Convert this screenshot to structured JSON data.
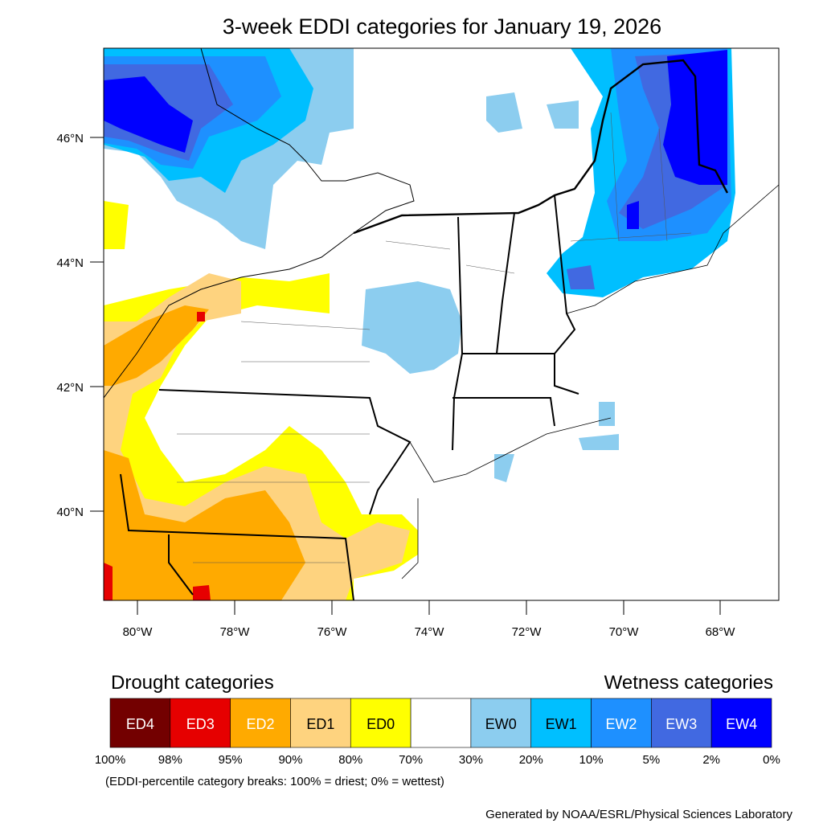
{
  "title": "3-week EDDI categories for January 19, 2026",
  "map": {
    "lat_labels": [
      "46°N",
      "44°N",
      "42°N",
      "40°N"
    ],
    "lon_labels": [
      "80°W",
      "78°W",
      "76°W",
      "74°W",
      "72°W",
      "70°W",
      "68°W"
    ]
  },
  "legend": {
    "drought_title": "Drought categories",
    "wetness_title": "Wetness categories",
    "categories": [
      {
        "label": "ED4",
        "color": "#730000"
      },
      {
        "label": "ED3",
        "color": "#e60000"
      },
      {
        "label": "ED2",
        "color": "#ffaa00"
      },
      {
        "label": "ED1",
        "color": "#fed37f"
      },
      {
        "label": "ED0",
        "color": "#ffff00"
      },
      {
        "label": "",
        "color": "#ffffff"
      },
      {
        "label": "EW0",
        "color": "#8ccdef"
      },
      {
        "label": "EW1",
        "color": "#00bfff"
      },
      {
        "label": "EW2",
        "color": "#1e90ff"
      },
      {
        "label": "EW3",
        "color": "#4169e1"
      },
      {
        "label": "EW4",
        "color": "#0000ff"
      }
    ],
    "breaks": [
      "100%",
      "98%",
      "95%",
      "90%",
      "80%",
      "70%",
      "30%",
      "20%",
      "10%",
      "5%",
      "2%",
      "0%"
    ],
    "note": "(EDDI-percentile category breaks: 100% = driest; 0% = wettest)"
  },
  "credit": "Generated by NOAA/ESRL/Physical Sciences Laboratory"
}
